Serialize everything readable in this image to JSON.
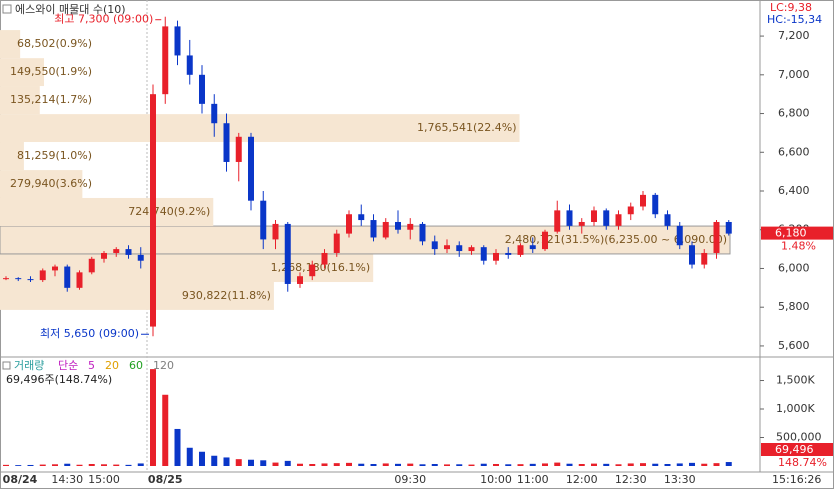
{
  "chart_data": [
    {
      "type": "candlestick",
      "title": "에스와이 매물대 수(10)",
      "lc_label": "LC:9,38",
      "hc_label": "HC:-15,34",
      "categories": [
        "08/24",
        null,
        null,
        null,
        null,
        "14:30",
        null,
        null,
        "15:00",
        null,
        null,
        null,
        null,
        "08/25",
        null,
        null,
        null,
        null,
        null,
        null,
        null,
        null,
        null,
        null,
        null,
        null,
        null,
        null,
        null,
        null,
        null,
        null,
        null,
        "09:30",
        null,
        null,
        null,
        null,
        null,
        null,
        "10:00",
        null,
        null,
        "11:00",
        null,
        null,
        null,
        "12:00",
        null,
        null,
        null,
        "12:30",
        null,
        null,
        null,
        "13:30",
        null,
        null,
        null,
        null
      ],
      "open": [
        5950,
        5950,
        5945,
        5940,
        5990,
        6010,
        5900,
        5980,
        6050,
        6080,
        6100,
        6070,
        5700,
        6900,
        7250,
        7100,
        7000,
        6850,
        6750,
        6550,
        6680,
        6350,
        6150,
        6230,
        5920,
        5960,
        6020,
        6080,
        6180,
        6280,
        6250,
        6160,
        6240,
        6200,
        6230,
        6140,
        6100,
        6120,
        6090,
        6110,
        6040,
        6080,
        6070,
        6120,
        6100,
        6190,
        6300,
        6220,
        6240,
        6300,
        6220,
        6280,
        6320,
        6380,
        6280,
        6220,
        6120,
        6020,
        6080,
        6240
      ],
      "high": [
        5960,
        5955,
        5960,
        6000,
        6020,
        6020,
        5990,
        6060,
        6090,
        6110,
        6120,
        6110,
        6950,
        7300,
        7280,
        7180,
        7050,
        6900,
        6800,
        6700,
        6700,
        6400,
        6250,
        6240,
        5980,
        6040,
        6100,
        6200,
        6300,
        6330,
        6280,
        6260,
        6300,
        6260,
        6240,
        6170,
        6150,
        6140,
        6120,
        6120,
        6100,
        6110,
        6130,
        6160,
        6200,
        6350,
        6330,
        6260,
        6320,
        6310,
        6300,
        6340,
        6400,
        6390,
        6300,
        6240,
        6140,
        6100,
        6250,
        6250
      ],
      "low": [
        5940,
        5935,
        5930,
        5930,
        5960,
        5880,
        5890,
        5970,
        6030,
        6060,
        6050,
        6000,
        5650,
        6850,
        7050,
        6950,
        6800,
        6680,
        6500,
        6450,
        6300,
        6100,
        6100,
        5880,
        5900,
        5940,
        6000,
        6060,
        6160,
        6220,
        6140,
        6150,
        6180,
        6150,
        6120,
        6070,
        6080,
        6060,
        6070,
        6020,
        6020,
        6050,
        6060,
        6080,
        6090,
        6180,
        6200,
        6180,
        6220,
        6200,
        6200,
        6250,
        6300,
        6260,
        6200,
        6100,
        6000,
        6000,
        6050,
        6170
      ],
      "close": [
        5950,
        5945,
        5940,
        5990,
        6010,
        5900,
        5980,
        6050,
        6080,
        6100,
        6070,
        6040,
        6900,
        7250,
        7100,
        7000,
        6850,
        6750,
        6550,
        6680,
        6350,
        6150,
        6230,
        5920,
        5960,
        6020,
        6080,
        6180,
        6280,
        6250,
        6160,
        6240,
        6200,
        6230,
        6140,
        6100,
        6120,
        6090,
        6110,
        6040,
        6080,
        6070,
        6120,
        6100,
        6190,
        6300,
        6220,
        6240,
        6300,
        6220,
        6280,
        6320,
        6380,
        6280,
        6220,
        6120,
        6020,
        6080,
        6240,
        6180
      ],
      "up_color": "#e8202a",
      "down_color": "#0a36c8",
      "ylim": [
        5548,
        7345
      ],
      "yticks": [
        {
          "value": 5600,
          "label": "5,600"
        },
        {
          "value": 5800,
          "label": "5,800"
        },
        {
          "value": 6000,
          "label": "6,000"
        },
        {
          "value": 6200,
          "label": "6,200"
        },
        {
          "value": 6400,
          "label": "6,400"
        },
        {
          "value": 6600,
          "label": "6,600"
        },
        {
          "value": 6800,
          "label": "6,800"
        },
        {
          "value": 7000,
          "label": "7,000"
        },
        {
          "value": 7200,
          "label": "7,200"
        }
      ],
      "high_annotation": "최고 7,300 (09:00)",
      "low_annotation": "최저 5,650 (09:00)",
      "last_price": {
        "value": 6180,
        "label": "6,180"
      },
      "change_label": "1.48%",
      "profile": {
        "bins": [
          5786,
          5930,
          6075,
          6219,
          6364,
          6508,
          6653,
          6797,
          6942,
          7086,
          7231
        ],
        "volumes": [
          930822,
          1268180,
          2480721,
          724740,
          279940,
          81259,
          1765541,
          135214,
          149550,
          68502
        ],
        "labels": [
          "930,822(11.8%)",
          "1,268,180(16.1%)",
          "2,480,721(31.5%)(6,235.00 ~ 6,090.00)",
          "724,740(9.2%)",
          "279,940(3.6%)",
          "81,259(1.0%)",
          "1,765,541(22.4%)",
          "135,214(1.7%)",
          "149,550(1.9%)",
          "68,502(0.9%)"
        ],
        "color": "#f6e6d2"
      }
    },
    {
      "type": "bar",
      "title": "거래량",
      "ma_label": "단순",
      "ma_periods": [
        5,
        20,
        60,
        120
      ],
      "ma_colors": [
        "#c020c0",
        "#e0a000",
        "#20a020",
        "#808080"
      ],
      "info": "69,496주(148.74%)",
      "values": [
        20000,
        15000,
        18000,
        25000,
        30000,
        40000,
        22000,
        35000,
        30000,
        25000,
        20000,
        45000,
        1700000,
        1250000,
        650000,
        320000,
        250000,
        180000,
        150000,
        120000,
        110000,
        100000,
        60000,
        90000,
        40000,
        35000,
        45000,
        50000,
        55000,
        40000,
        35000,
        45000,
        38000,
        42000,
        30000,
        35000,
        28000,
        30000,
        25000,
        40000,
        35000,
        30000,
        32000,
        38000,
        45000,
        60000,
        40000,
        35000,
        42000,
        38000,
        30000,
        45000,
        50000,
        40000,
        35000,
        45000,
        55000,
        40000,
        50000,
        69496
      ],
      "last_value_label": "69,496",
      "last_change_label": "148.74%",
      "ylim": [
        0,
        1860000
      ],
      "yticks": [
        {
          "value": 500000,
          "label": "500,000"
        },
        {
          "value": 1000000,
          "label": "1,000K"
        },
        {
          "value": 1500000,
          "label": "1,500K"
        }
      ]
    }
  ],
  "clock": "15:16:26"
}
